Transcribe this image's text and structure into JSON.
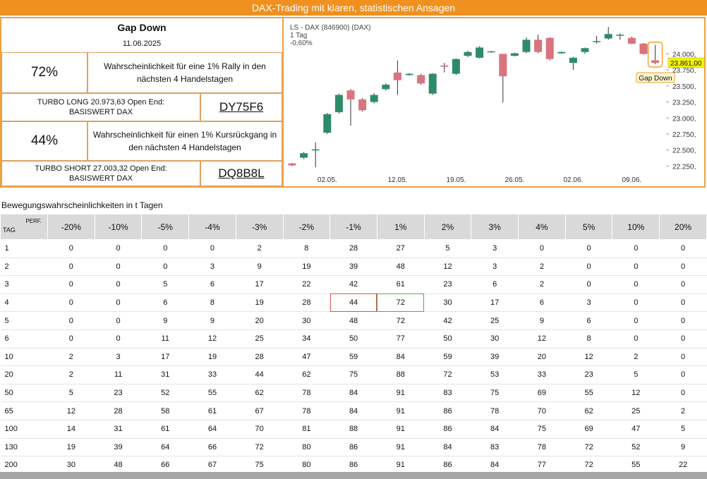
{
  "header": {
    "title": "DAX-Trading mit klaren, statistischen Ansagen"
  },
  "signal": {
    "title": "Gap Down",
    "date": "11.06.2025",
    "long_probability": "72%",
    "long_text": "Wahrscheinlichkeit für eine 1% Rally in den nächsten 4 Handelstagen",
    "long_turbo": "TURBO LONG 20.973,63 Open End:",
    "long_underlying": "BASISWERT DAX",
    "long_wkn": "DY75F6",
    "short_probability": "44%",
    "short_text": "Wahrscheinlichkeit für einen 1% Kursrückgang in den nächsten 4 Handelstagen",
    "short_turbo": "TURBO SHORT 27.003,32 Open End:",
    "short_underlying": "BASISWERT DAX",
    "short_wkn": "DQ8B8L"
  },
  "chart_data": {
    "type": "candlestick",
    "title": "LS - DAX (846900) (DAX)",
    "subtitle": "1 Tag",
    "annotations": [
      "-0,60%",
      "23.861,00",
      "Gap Down"
    ],
    "up_color": "#2e8b6a",
    "down_color": "#d9737d",
    "categories": [
      null,
      null,
      null,
      "02.05.",
      null,
      null,
      null,
      null,
      null,
      "12.05.",
      null,
      null,
      null,
      null,
      "19.05.",
      null,
      null,
      null,
      null,
      "26.05.",
      null,
      null,
      null,
      null,
      "02.06.",
      null,
      null,
      null,
      null,
      "09.06.",
      null,
      null
    ],
    "open": [
      22290,
      22380,
      22500,
      22770,
      23090,
      23430,
      23290,
      23250,
      23450,
      23710,
      23670,
      23670,
      23380,
      23820,
      23690,
      23970,
      23940,
      24030,
      24000,
      23970,
      24030,
      24220,
      24250,
      24010,
      23860,
      24030,
      24190,
      24240,
      24290,
      24250,
      24160,
      23900
    ],
    "high": [
      22300,
      22470,
      22620,
      23080,
      23380,
      23450,
      23310,
      23390,
      23540,
      23900,
      23700,
      23690,
      23700,
      23860,
      23930,
      24050,
      24120,
      24050,
      24000,
      24020,
      24260,
      24300,
      24260,
      24040,
      23950,
      24100,
      24280,
      24420,
      24320,
      24270,
      24170,
      24140
    ],
    "low": [
      22250,
      22360,
      22230,
      22750,
      23070,
      22880,
      23100,
      23230,
      23430,
      23360,
      23660,
      23520,
      23360,
      23710,
      23670,
      23950,
      23930,
      24020,
      23240,
      23960,
      24010,
      24010,
      23900,
      24000,
      23750,
      24000,
      24160,
      24220,
      24220,
      24150,
      23990,
      23840
    ],
    "close": [
      22260,
      22450,
      22510,
      23060,
      23360,
      23290,
      23120,
      23360,
      23520,
      23590,
      23690,
      23540,
      23690,
      23800,
      23920,
      24030,
      24100,
      24040,
      23650,
      24010,
      24220,
      24030,
      23920,
      24030,
      23940,
      24090,
      24200,
      24310,
      24300,
      24160,
      24000,
      23861
    ],
    "ylim": [
      22100,
      24500
    ],
    "yticks": [
      {
        "value": 22250,
        "label": "22.250,"
      },
      {
        "value": 22500,
        "label": "22.500,"
      },
      {
        "value": 22750,
        "label": "22.750,"
      },
      {
        "value": 23000,
        "label": "23.000,"
      },
      {
        "value": 23250,
        "label": "23.250,"
      },
      {
        "value": 23500,
        "label": "23.500,"
      },
      {
        "value": 23750,
        "label": "23.750,"
      },
      {
        "value": 24000,
        "label": "24.000,"
      }
    ]
  },
  "table": {
    "title": "Bewegungswahrscheinlichkeiten in t Tagen",
    "corner_row": "TAG",
    "corner_col": "PERF.",
    "columns": [
      "-20%",
      "-10%",
      "-5%",
      "-4%",
      "-3%",
      "-2%",
      "-1%",
      "1%",
      "2%",
      "3%",
      "4%",
      "5%",
      "10%",
      "20%"
    ],
    "rows": [
      [
        1,
        0,
        0,
        0,
        0,
        2,
        8,
        28,
        27,
        5,
        3,
        0,
        0,
        0,
        0
      ],
      [
        2,
        0,
        0,
        0,
        3,
        9,
        19,
        39,
        48,
        12,
        3,
        2,
        0,
        0,
        0
      ],
      [
        3,
        0,
        0,
        5,
        6,
        17,
        22,
        42,
        61,
        23,
        6,
        2,
        0,
        0,
        0
      ],
      [
        4,
        0,
        0,
        6,
        8,
        19,
        28,
        44,
        72,
        30,
        17,
        6,
        3,
        0,
        0
      ],
      [
        5,
        0,
        0,
        9,
        9,
        20,
        30,
        48,
        72,
        42,
        25,
        9,
        6,
        0,
        0
      ],
      [
        6,
        0,
        0,
        11,
        12,
        25,
        34,
        50,
        77,
        50,
        30,
        12,
        8,
        0,
        0
      ],
      [
        10,
        2,
        3,
        17,
        19,
        28,
        47,
        59,
        84,
        59,
        39,
        20,
        12,
        2,
        0
      ],
      [
        20,
        2,
        11,
        31,
        33,
        44,
        62,
        75,
        88,
        72,
        53,
        33,
        23,
        5,
        0
      ],
      [
        50,
        5,
        23,
        52,
        55,
        62,
        78,
        84,
        91,
        83,
        75,
        69,
        55,
        12,
        0
      ],
      [
        65,
        12,
        28,
        58,
        61,
        67,
        78,
        84,
        91,
        86,
        78,
        70,
        62,
        25,
        2
      ],
      [
        100,
        14,
        31,
        61,
        64,
        70,
        81,
        88,
        91,
        86,
        84,
        75,
        69,
        47,
        5
      ],
      [
        130,
        19,
        39,
        64,
        66,
        72,
        80,
        86,
        91,
        84,
        83,
        78,
        72,
        52,
        9
      ],
      [
        200,
        30,
        48,
        66,
        67,
        75,
        80,
        86,
        91,
        86,
        84,
        77,
        72,
        55,
        22
      ]
    ]
  }
}
